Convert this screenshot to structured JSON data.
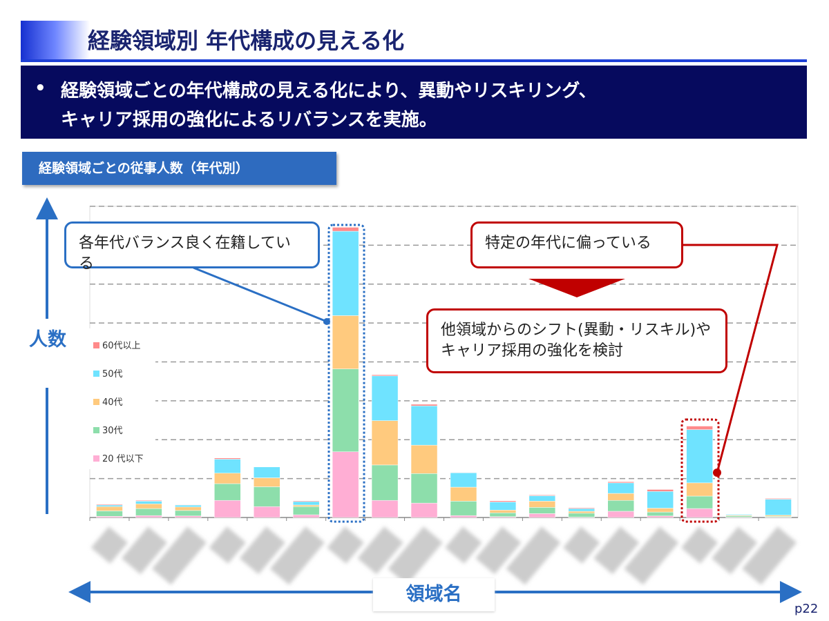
{
  "title": "経験領域別 年代構成の見える化",
  "bullet": {
    "mark": "•",
    "line1": "経験領域ごとの年代構成の見える化により、異動やリスキリング、",
    "line2": "キャリア採用の強化によるリバランスを実施。"
  },
  "subtitle": "経験領域ごとの従事人数（年代別）",
  "callouts": {
    "blue": "各年代バランス良く在籍している",
    "red_top": "特定の年代に偏っている",
    "red_bottom_1": "他領域からのシフト(異動・リスキル)や",
    "red_bottom_2": "キャリア採用の強化を検討"
  },
  "page_number": "p22",
  "colors": {
    "navy": "#060a5e",
    "blue": "#2e6bbf",
    "red": "#c00000"
  },
  "chart_data": {
    "type": "bar",
    "stacked": true,
    "ylabel": "人数",
    "xlabel": "領域名",
    "categories_blurred": true,
    "grid": true,
    "legend_placement": "left",
    "ylim": [
      0,
      8
    ],
    "series": [
      {
        "name": "20 代以下",
        "color": "#ffaed4",
        "values": [
          0.03,
          0.05,
          0.04,
          0.44,
          0.28,
          0.07,
          1.69,
          0.44,
          0.37,
          0.05,
          0.02,
          0.1,
          0.01,
          0.16,
          0.04,
          0.23,
          0.01,
          0.01
        ]
      },
      {
        "name": "30代",
        "color": "#8ddeab",
        "values": [
          0.14,
          0.18,
          0.14,
          0.43,
          0.51,
          0.21,
          2.13,
          0.91,
          0.76,
          0.37,
          0.1,
          0.16,
          0.1,
          0.28,
          0.1,
          0.32,
          0.03,
          0.02
        ]
      },
      {
        "name": "40代",
        "color": "#ffca7e",
        "values": [
          0.11,
          0.12,
          0.09,
          0.27,
          0.23,
          0.04,
          1.37,
          1.14,
          0.73,
          0.36,
          0.07,
          0.16,
          0.05,
          0.18,
          0.1,
          0.34,
          0.02,
          0.03
        ]
      },
      {
        "name": "50代",
        "color": "#6fe3ff",
        "values": [
          0.04,
          0.07,
          0.05,
          0.36,
          0.28,
          0.09,
          2.17,
          1.15,
          1.01,
          0.37,
          0.21,
          0.14,
          0.07,
          0.27,
          0.43,
          1.37,
          0.02,
          0.41
        ]
      },
      {
        "name": "60代以上",
        "color": "#ff8a8a",
        "values": [
          0.02,
          0.02,
          0.01,
          0.03,
          0,
          0.02,
          0.1,
          0.03,
          0.04,
          0.01,
          0.03,
          0.02,
          0.02,
          0.03,
          0.05,
          0.09,
          0,
          0.02
        ]
      }
    ]
  }
}
